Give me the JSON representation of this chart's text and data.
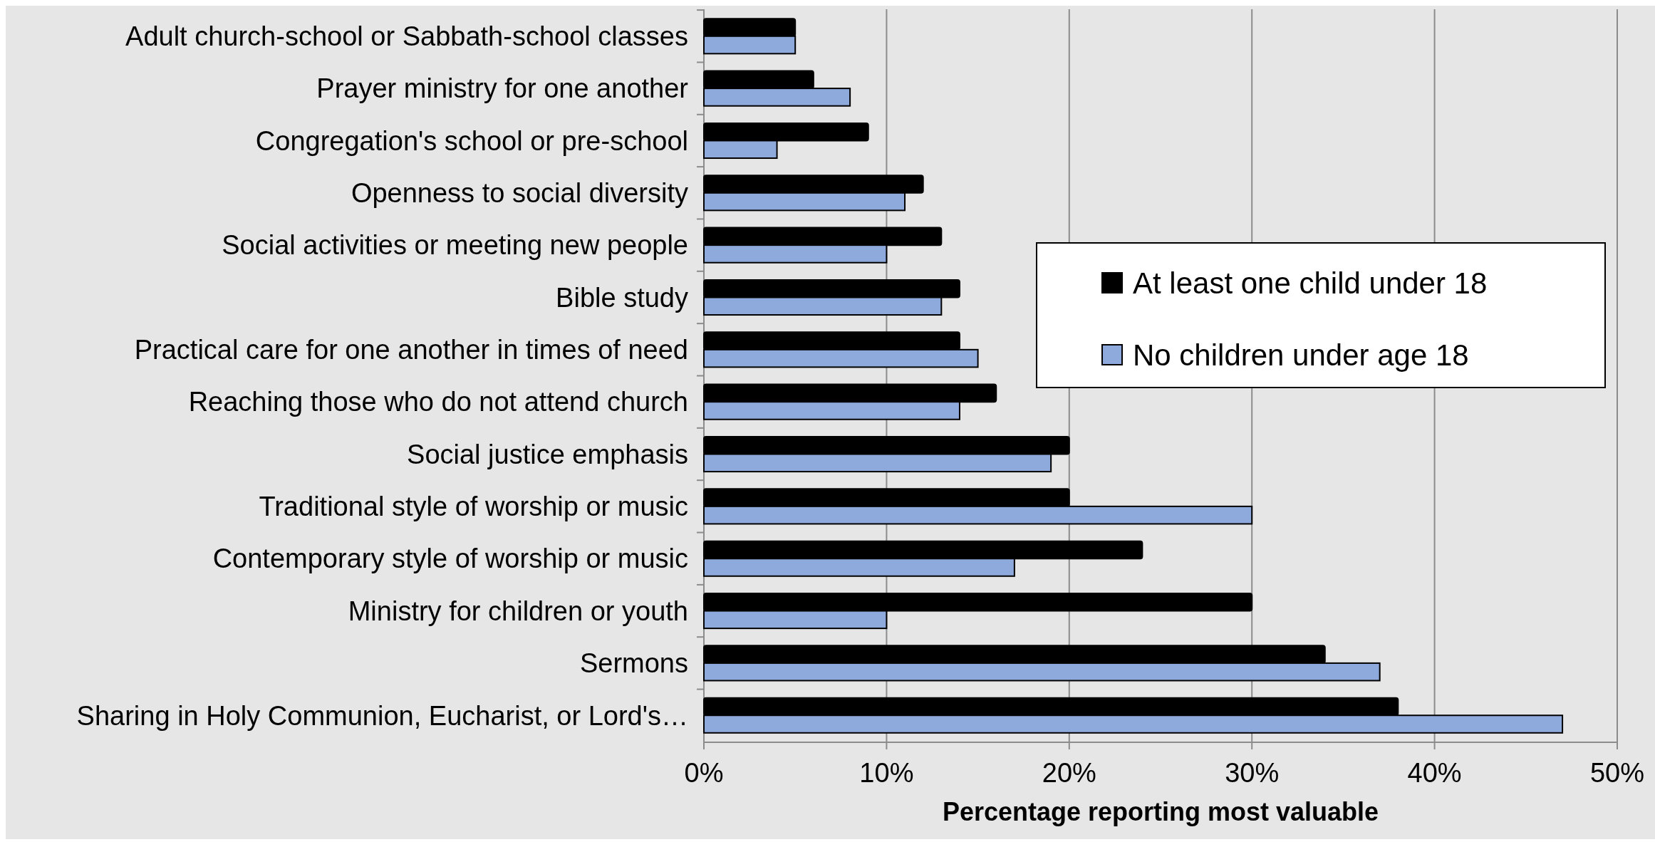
{
  "chart_data": {
    "type": "bar",
    "orientation": "horizontal",
    "xlabel": "Percentage reporting most valuable",
    "categories": [
      "Adult church-school or Sabbath-school classes",
      "Prayer ministry for one another",
      "Congregation's school or pre-school",
      "Openness to social diversity",
      "Social activities or meeting new people",
      "Bible study",
      "Practical care for one another in times of need",
      "Reaching those who do not attend church",
      "Social justice emphasis",
      "Traditional style of worship or music",
      "Contemporary style of worship or music",
      "Ministry for children or youth",
      "Sermons",
      "Sharing in Holy Communion, Eucharist, or Lord's…"
    ],
    "series": [
      {
        "name": "At least one child under 18",
        "color": "#000000",
        "values": [
          5,
          6,
          9,
          12,
          13,
          14,
          14,
          16,
          20,
          20,
          24,
          30,
          34,
          38
        ]
      },
      {
        "name": "No children under age 18",
        "color": "#8eaadc",
        "values": [
          5,
          8,
          4,
          11,
          10,
          13,
          15,
          14,
          19,
          30,
          17,
          10,
          37,
          47
        ]
      }
    ],
    "xlim": [
      0,
      50
    ],
    "xticks": [
      {
        "value": 0,
        "label": "0%"
      },
      {
        "value": 10,
        "label": "10%"
      },
      {
        "value": 20,
        "label": "20%"
      },
      {
        "value": 30,
        "label": "30%"
      },
      {
        "value": 40,
        "label": "40%"
      },
      {
        "value": 50,
        "label": "50%"
      }
    ],
    "grid": "x",
    "legend": "right"
  }
}
